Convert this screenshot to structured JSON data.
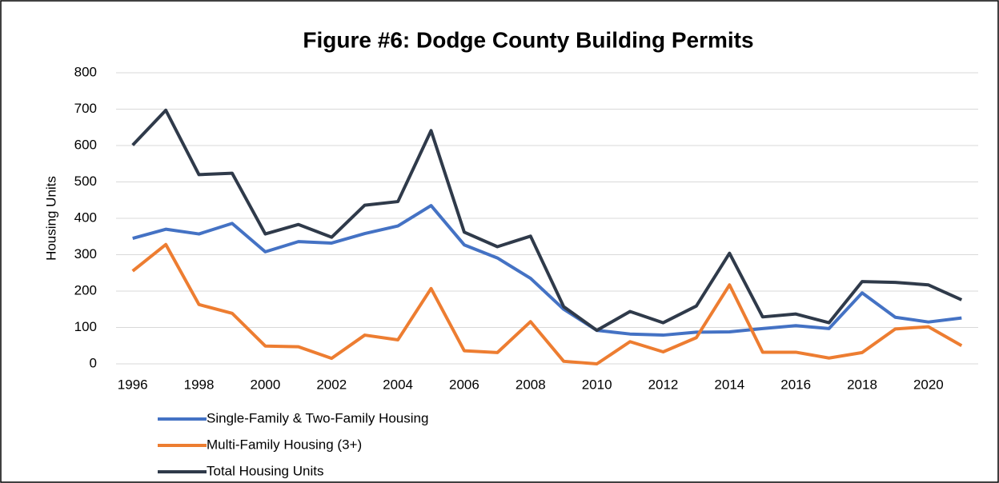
{
  "chart_data": {
    "type": "line",
    "title": "Figure #6:  Dodge County Building Permits",
    "y_label": "Housing Units",
    "x": [
      1996,
      1997,
      1998,
      1999,
      2000,
      2001,
      2002,
      2003,
      2004,
      2005,
      2006,
      2007,
      2008,
      2009,
      2010,
      2011,
      2012,
      2013,
      2014,
      2015,
      2016,
      2017,
      2018,
      2019,
      2020,
      2021
    ],
    "xlim": [
      1995.5,
      2021.5
    ],
    "xticks": [
      1996,
      1998,
      2000,
      2002,
      2004,
      2006,
      2008,
      2010,
      2012,
      2014,
      2016,
      2018,
      2020
    ],
    "ylim": [
      0,
      800
    ],
    "yticks": [
      0,
      100,
      200,
      300,
      400,
      500,
      600,
      700,
      800
    ],
    "grid": true,
    "legend": "bottom",
    "series": [
      {
        "name": "Single-Family & Two-Family Housing",
        "color": "#4472c4",
        "values": [
          345,
          370,
          357,
          386,
          308,
          336,
          332,
          358,
          379,
          435,
          327,
          291,
          235,
          150,
          92,
          82,
          79,
          87,
          88,
          97,
          105,
          97,
          195,
          128,
          115,
          126
        ]
      },
      {
        "name": "Multi-Family Housing (3+)",
        "color": "#ed7d31",
        "values": [
          255,
          328,
          163,
          139,
          49,
          47,
          15,
          79,
          66,
          207,
          36,
          31,
          116,
          7,
          0,
          61,
          33,
          72,
          217,
          32,
          32,
          16,
          31,
          96,
          102,
          50
        ]
      },
      {
        "name": "Total Housing Units",
        "color": "#2f3a4a",
        "values": [
          601,
          697,
          520,
          524,
          357,
          383,
          348,
          436,
          446,
          641,
          362,
          322,
          351,
          157,
          92,
          144,
          113,
          159,
          304,
          129,
          137,
          113,
          226,
          224,
          217,
          176
        ]
      }
    ]
  }
}
